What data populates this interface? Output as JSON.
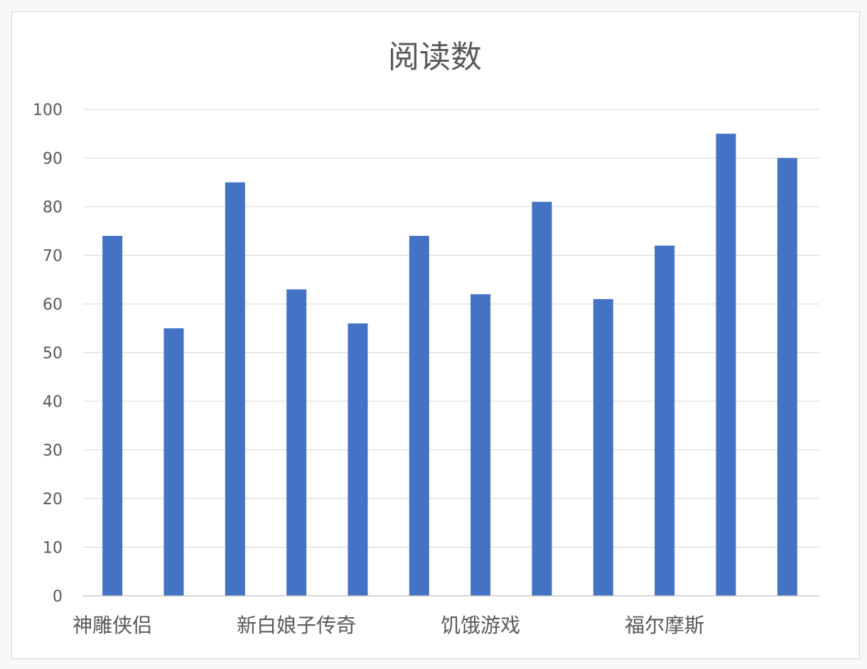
{
  "chart_data": {
    "type": "bar",
    "title": "阅读数",
    "xlabel": "",
    "ylabel": "",
    "ylim": [
      0,
      100
    ],
    "yticks": [
      0,
      10,
      20,
      30,
      40,
      50,
      60,
      70,
      80,
      90,
      100
    ],
    "grid": true,
    "legend": "none",
    "bar_color": "#4472c4",
    "values": [
      74,
      55,
      85,
      63,
      56,
      74,
      62,
      81,
      61,
      72,
      95,
      90
    ],
    "category_labels": [
      {
        "text": "神雕侠侣",
        "under_bar": 0
      },
      {
        "text": "新白娘子传奇",
        "under_bar": 3
      },
      {
        "text": "饥饿游戏",
        "under_bar": 6
      },
      {
        "text": "福尔摩斯",
        "under_bar": 9
      }
    ]
  }
}
